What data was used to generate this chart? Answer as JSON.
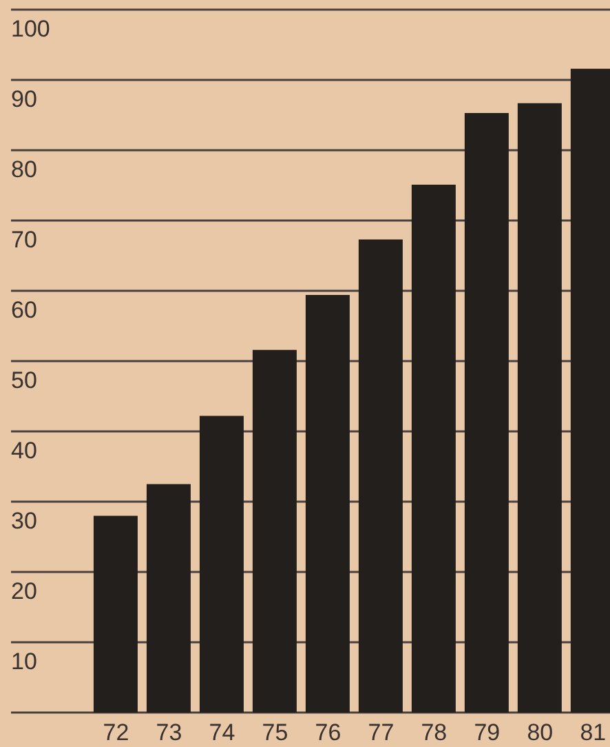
{
  "chart_data": {
    "type": "bar",
    "categories": [
      "72",
      "73",
      "74",
      "75",
      "76",
      "77",
      "78",
      "79",
      "80",
      "81"
    ],
    "values": [
      28,
      32.5,
      42.2,
      51.6,
      59.4,
      67.3,
      75.1,
      85.3,
      86.7,
      91.6
    ],
    "color": "#231f1c",
    "ylim": [
      0,
      100
    ],
    "yticks": [
      {
        "value": 0,
        "label": null
      },
      10,
      20,
      30,
      40,
      50,
      60,
      70,
      80,
      90,
      100
    ],
    "grid": "y"
  }
}
